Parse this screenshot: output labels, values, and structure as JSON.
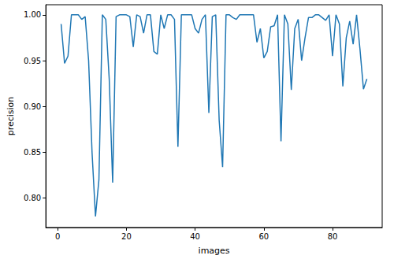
{
  "chart_data": {
    "type": "line",
    "x_label": "images",
    "y_label": "precision",
    "color": "#1f77b4",
    "grid": false,
    "x": [
      1,
      2,
      3,
      4,
      5,
      6,
      7,
      8,
      9,
      10,
      11,
      12,
      13,
      14,
      15,
      16,
      17,
      18,
      19,
      20,
      21,
      22,
      23,
      24,
      25,
      26,
      27,
      28,
      29,
      30,
      31,
      32,
      33,
      34,
      35,
      36,
      37,
      38,
      39,
      40,
      41,
      42,
      43,
      44,
      45,
      46,
      47,
      48,
      49,
      50,
      51,
      52,
      53,
      54,
      55,
      56,
      57,
      58,
      59,
      60,
      61,
      62,
      63,
      64,
      65,
      66,
      67,
      68,
      69,
      70,
      71,
      72,
      73,
      74,
      75,
      76,
      77,
      78,
      79,
      80,
      81,
      82,
      83,
      84,
      85,
      86,
      87,
      88,
      89,
      90
    ],
    "values": [
      0.99,
      0.947,
      0.955,
      1.0,
      1.0,
      1.0,
      0.995,
      0.998,
      0.95,
      0.85,
      0.78,
      0.82,
      1.0,
      0.995,
      0.93,
      0.817,
      0.998,
      1.0,
      1.0,
      1.0,
      0.998,
      0.965,
      1.0,
      0.998,
      0.98,
      1.0,
      1.0,
      0.96,
      0.957,
      1.0,
      0.985,
      1.0,
      1.0,
      0.995,
      0.856,
      1.0,
      1.0,
      1.0,
      1.0,
      0.985,
      0.98,
      0.995,
      1.0,
      0.893,
      0.998,
      1.0,
      0.885,
      0.834,
      1.0,
      1.0,
      0.997,
      0.995,
      1.0,
      1.0,
      1.0,
      1.0,
      1.0,
      0.97,
      0.985,
      0.953,
      0.96,
      0.987,
      0.988,
      1.0,
      0.862,
      1.0,
      0.99,
      0.918,
      0.985,
      0.995,
      0.95,
      0.975,
      0.997,
      0.997,
      1.0,
      1.0,
      0.997,
      0.994,
      1.0,
      0.955,
      1.0,
      0.99,
      0.922,
      0.975,
      0.993,
      0.968,
      1.0,
      0.962,
      0.919,
      0.93
    ],
    "xlim": [
      -3.45,
      94.45
    ],
    "xticks": [
      0,
      20,
      40,
      60,
      80
    ],
    "ylim": [
      0.768,
      1.011
    ],
    "yticks": [
      {
        "value": 0.8,
        "label": "0.80"
      },
      0.85,
      {
        "value": 0.9,
        "label": "0.90"
      },
      0.95,
      {
        "value": 1.0,
        "label": "1.00"
      }
    ]
  }
}
